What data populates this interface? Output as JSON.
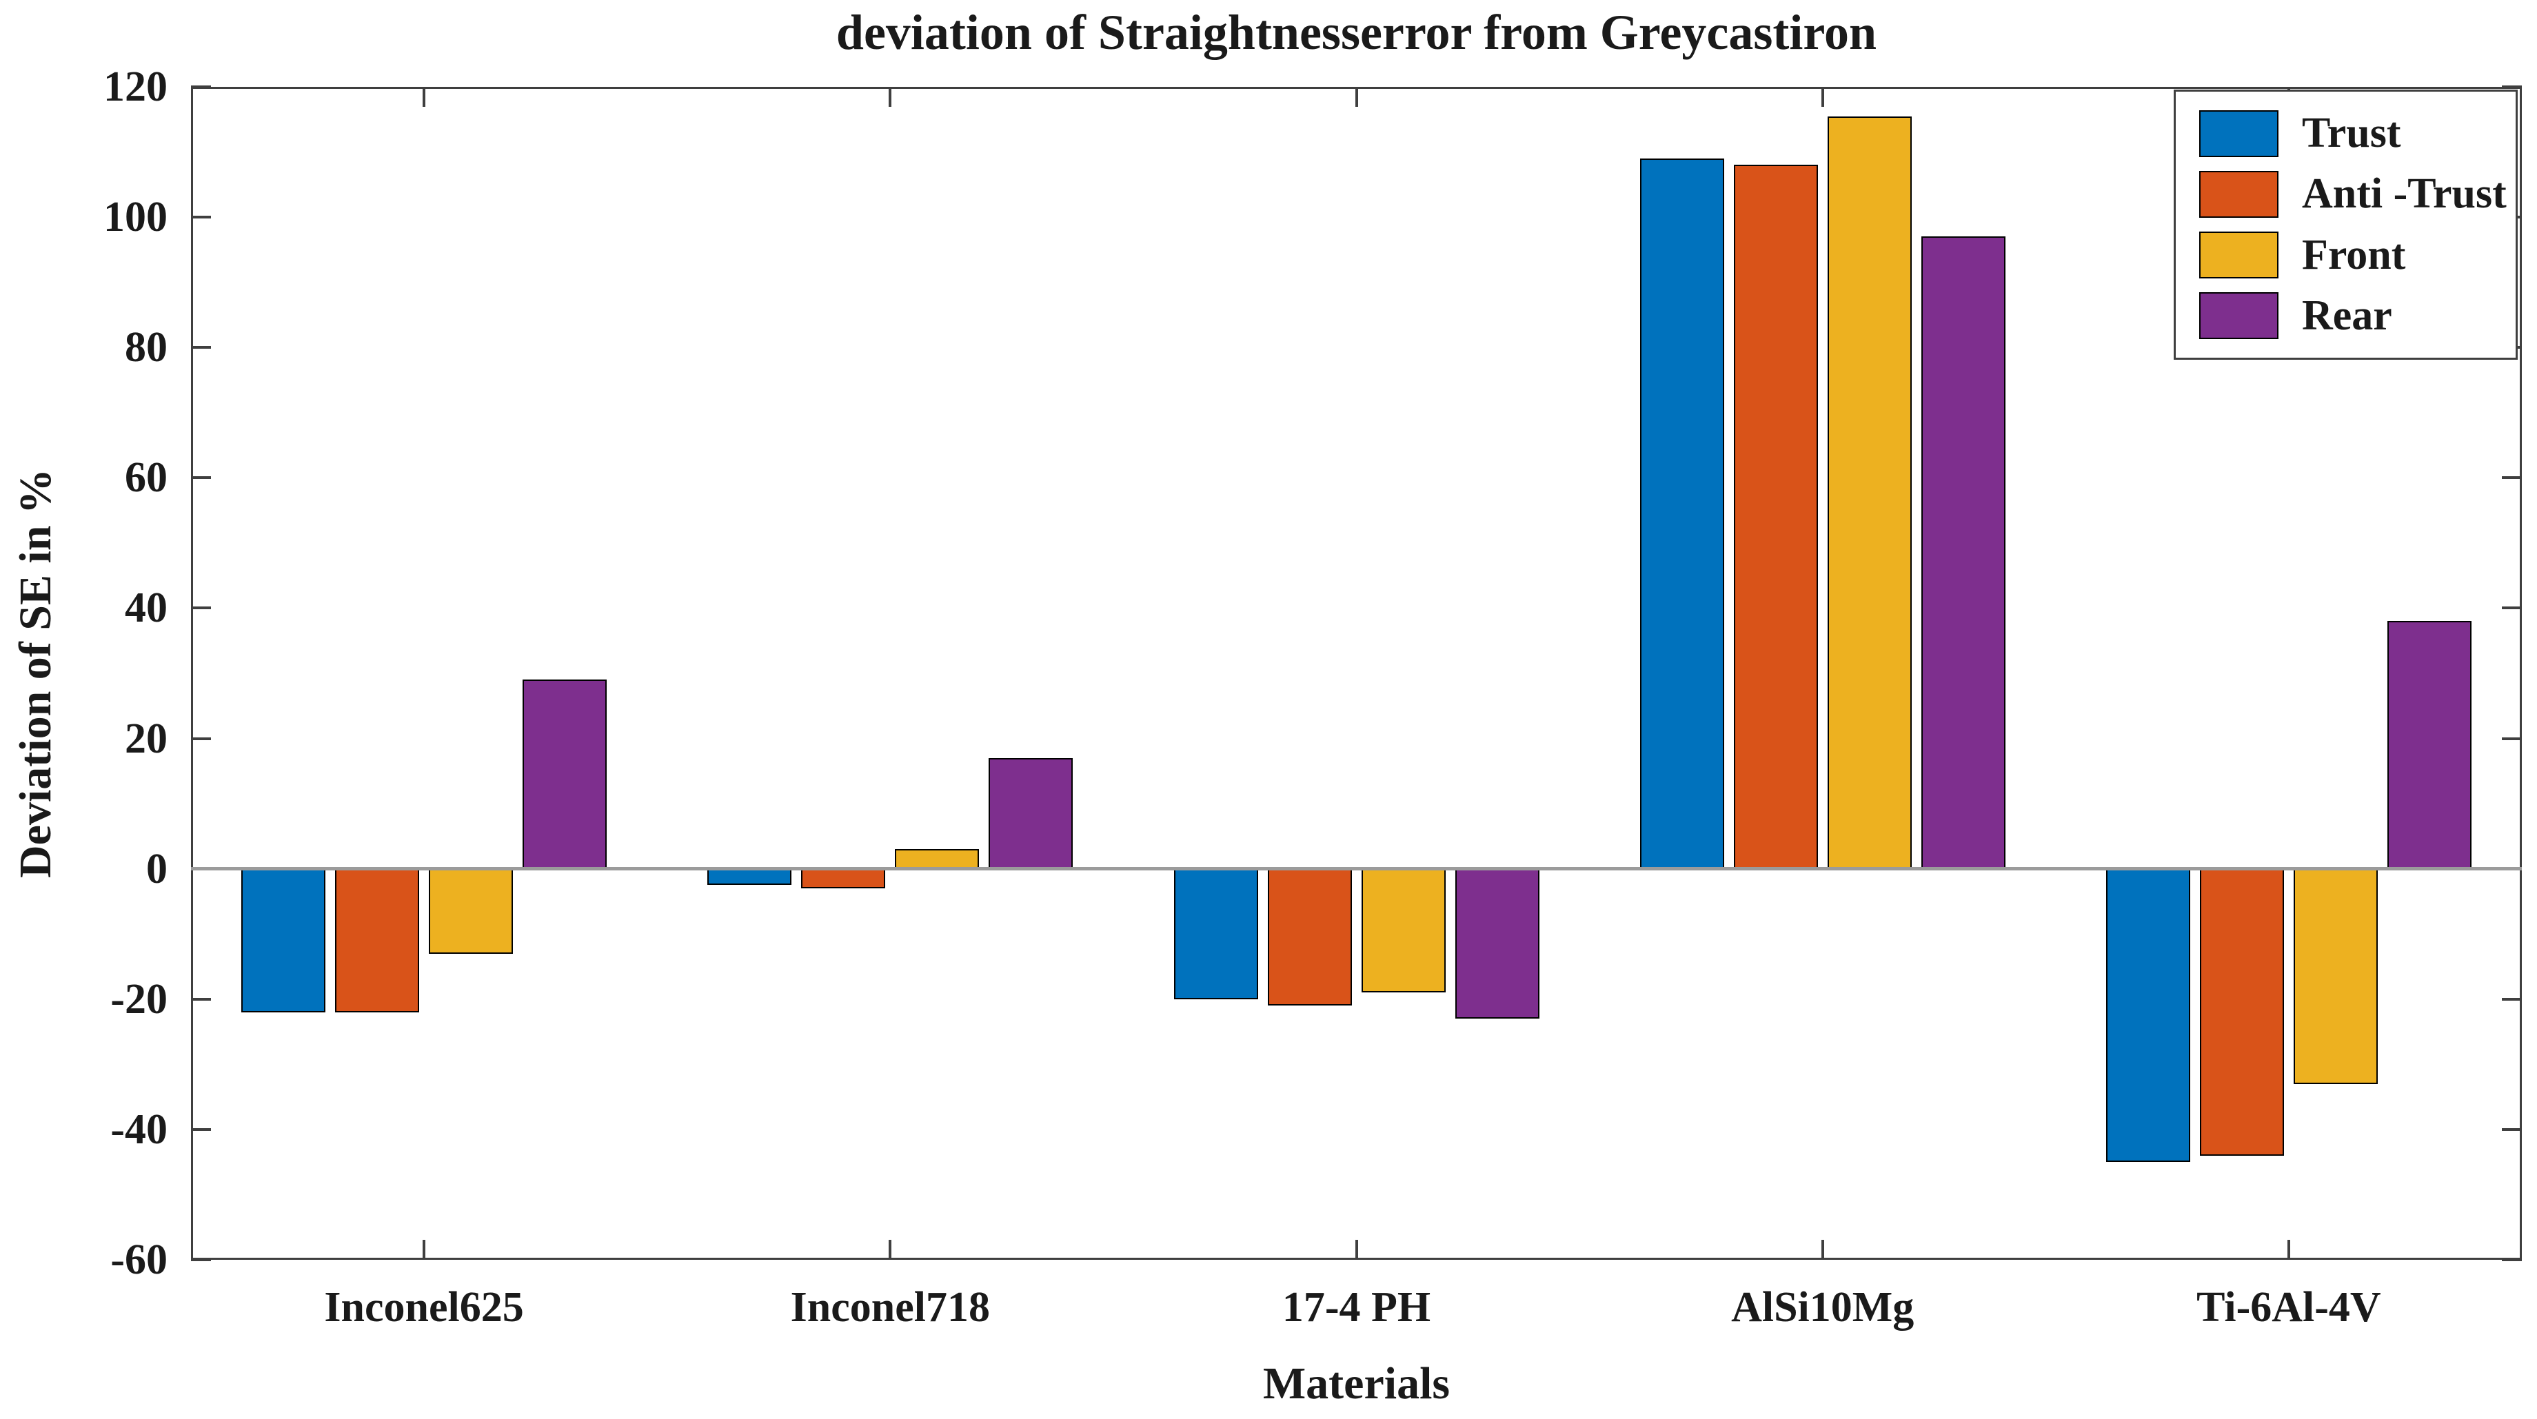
{
  "figure": {
    "title": "deviation of Straightnesserror from Greycastiron",
    "xlabel": "Materials",
    "ylabel": "Deviation of SE in %"
  },
  "chart_data": {
    "type": "bar",
    "title": "deviation of Straightnesserror from Greycastiron",
    "xlabel": "Materials",
    "ylabel": "Deviation of SE in %",
    "categories": [
      "Inconel625",
      "Inconel718",
      "17-4 PH",
      "AlSi10Mg",
      "Ti-6Al-4V"
    ],
    "series": [
      {
        "name": "Trust",
        "color": "#0072BD",
        "values": [
          -22,
          -2.5,
          -20,
          109,
          -45
        ]
      },
      {
        "name": "Anti -Trust",
        "color": "#D95319",
        "values": [
          -22,
          -3,
          -21,
          108,
          -44
        ]
      },
      {
        "name": "Front",
        "color": "#EDB120",
        "values": [
          -13,
          3,
          -19,
          115.5,
          -33
        ]
      },
      {
        "name": "Rear",
        "color": "#7E2F8E",
        "values": [
          29,
          17,
          -23,
          97,
          38
        ]
      }
    ],
    "ylim": [
      -60,
      120
    ],
    "ytick_step": 20,
    "ytick_labels": [
      "-60",
      "-40",
      "-20",
      "0",
      "20",
      "40",
      "60",
      "80",
      "100",
      "120"
    ],
    "grid": false,
    "legend_position": "top-right",
    "legend_entries": [
      "Trust",
      "Anti -Trust",
      "Front",
      "Rear"
    ]
  },
  "colors": {
    "axis": "#3f3f3f",
    "zero_line": "#9b9b9b",
    "bar_edge": "#000000",
    "text": "#1a1a1a",
    "background": "#ffffff"
  }
}
